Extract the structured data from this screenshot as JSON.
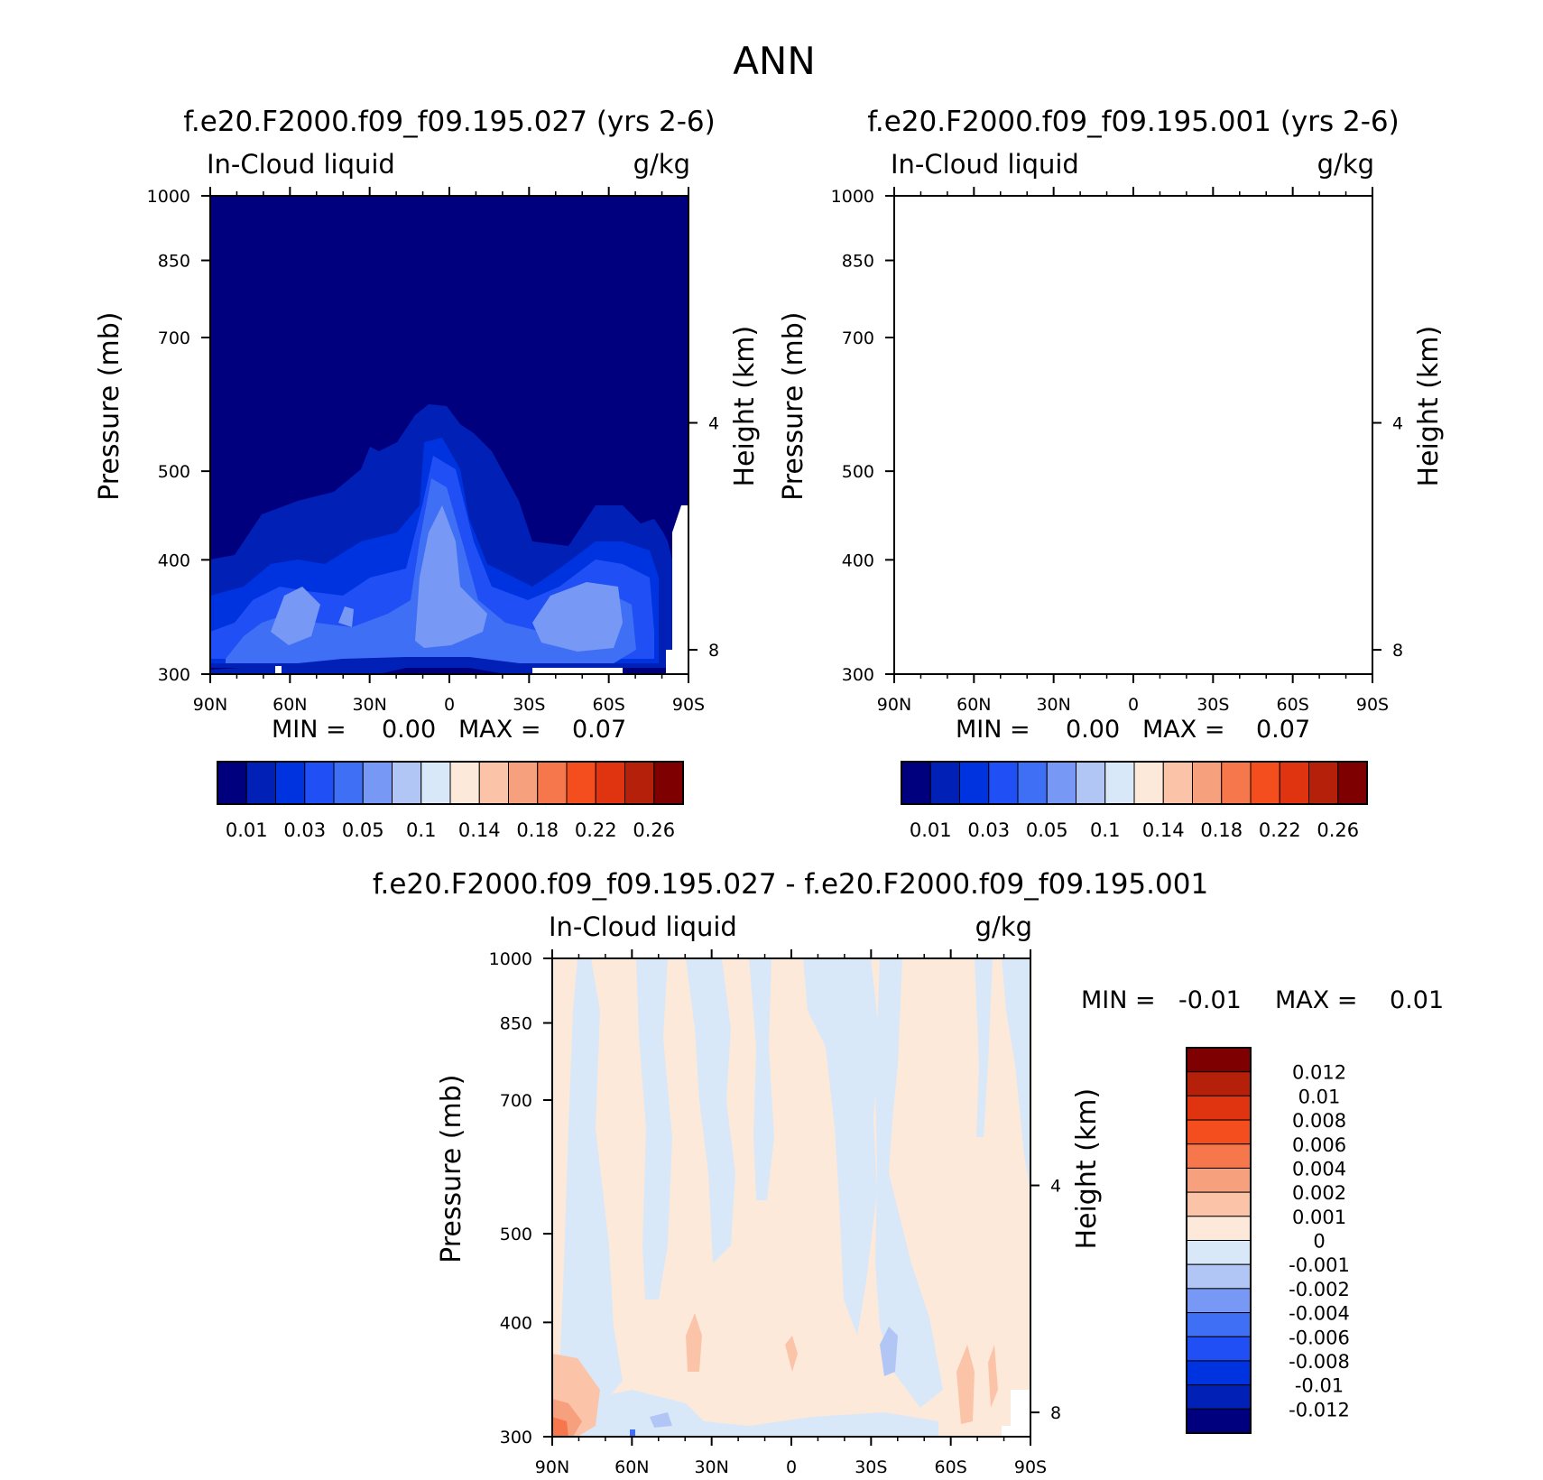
{
  "figure": {
    "title": "ANN"
  },
  "chart_data": [
    {
      "type": "heatmap",
      "title": "f.e20.F2000.f09_f09.195.027 (yrs 2-6)",
      "variable_label": "In-Cloud liquid",
      "units_label": "g/kg",
      "xlabel": "",
      "ylabel": "Pressure (mb)",
      "y2label": "Height (km)",
      "x_ticks": [
        "90N",
        "60N",
        "30N",
        "0",
        "30S",
        "60S",
        "90S"
      ],
      "y_ticks": [
        "300",
        "400",
        "500",
        "700",
        "850",
        "1000"
      ],
      "y2_ticks": [
        "8",
        "4"
      ],
      "min_label": "MIN =",
      "min_value": "0.00",
      "max_label": "MAX =",
      "max_value": "0.07",
      "colorbar_ticks": [
        "0.01",
        "0.03",
        "0.05",
        "0.1",
        "0.14",
        "0.18",
        "0.22",
        "0.26"
      ],
      "colorbar_colors": [
        "#00007f",
        "#0020b6",
        "#0033e0",
        "#1f4ff5",
        "#3f6ff5",
        "#7799f5",
        "#b1c6f5",
        "#d9e8f9",
        "#fde9da",
        "#fbc4a9",
        "#f7a07d",
        "#f7774d",
        "#f44e1f",
        "#e0330f",
        "#b4200a",
        "#7f0000"
      ]
    },
    {
      "type": "heatmap",
      "title": "f.e20.F2000.f09_f09.195.001 (yrs 2-6)",
      "variable_label": "In-Cloud liquid",
      "units_label": "g/kg",
      "xlabel": "",
      "ylabel": "Pressure (mb)",
      "y2label": "Height (km)",
      "x_ticks": [
        "90N",
        "60N",
        "30N",
        "0",
        "30S",
        "60S",
        "90S"
      ],
      "y_ticks": [
        "300",
        "400",
        "500",
        "700",
        "850",
        "1000"
      ],
      "y2_ticks": [
        "8",
        "4"
      ],
      "min_label": "MIN =",
      "min_value": "0.00",
      "max_label": "MAX =",
      "max_value": "0.07",
      "colorbar_ticks": [
        "0.01",
        "0.03",
        "0.05",
        "0.1",
        "0.14",
        "0.18",
        "0.22",
        "0.26"
      ],
      "colorbar_colors": [
        "#00007f",
        "#0020b6",
        "#0033e0",
        "#1f4ff5",
        "#3f6ff5",
        "#7799f5",
        "#b1c6f5",
        "#d9e8f9",
        "#fde9da",
        "#fbc4a9",
        "#f7a07d",
        "#f7774d",
        "#f44e1f",
        "#e0330f",
        "#b4200a",
        "#7f0000"
      ]
    },
    {
      "type": "heatmap",
      "title": "f.e20.F2000.f09_f09.195.027 - f.e20.F2000.f09_f09.195.001",
      "variable_label": "In-Cloud liquid",
      "units_label": "g/kg",
      "xlabel": "",
      "ylabel": "Pressure (mb)",
      "y2label": "Height (km)",
      "x_ticks": [
        "90N",
        "60N",
        "30N",
        "0",
        "30S",
        "60S",
        "90S"
      ],
      "y_ticks": [
        "300",
        "400",
        "500",
        "700",
        "850",
        "1000"
      ],
      "y2_ticks": [
        "8",
        "4"
      ],
      "min_label": "MIN =",
      "min_value": "-0.01",
      "max_label": "MAX =",
      "max_value": "0.01",
      "colorbar_ticks": [
        "0.012",
        "0.01",
        "0.008",
        "0.006",
        "0.004",
        "0.002",
        "0.001",
        "0",
        "-0.001",
        "-0.002",
        "-0.004",
        "-0.006",
        "-0.008",
        "-0.01",
        "-0.012"
      ],
      "colorbar_colors": [
        "#7f0000",
        "#b4200a",
        "#e0330f",
        "#f44e1f",
        "#f7774d",
        "#f7a07d",
        "#fbc4a9",
        "#fde9da",
        "#d9e8f9",
        "#b1c6f5",
        "#7799f5",
        "#3f6ff5",
        "#1f4ff5",
        "#0033e0",
        "#0020b6",
        "#00007f"
      ]
    }
  ]
}
